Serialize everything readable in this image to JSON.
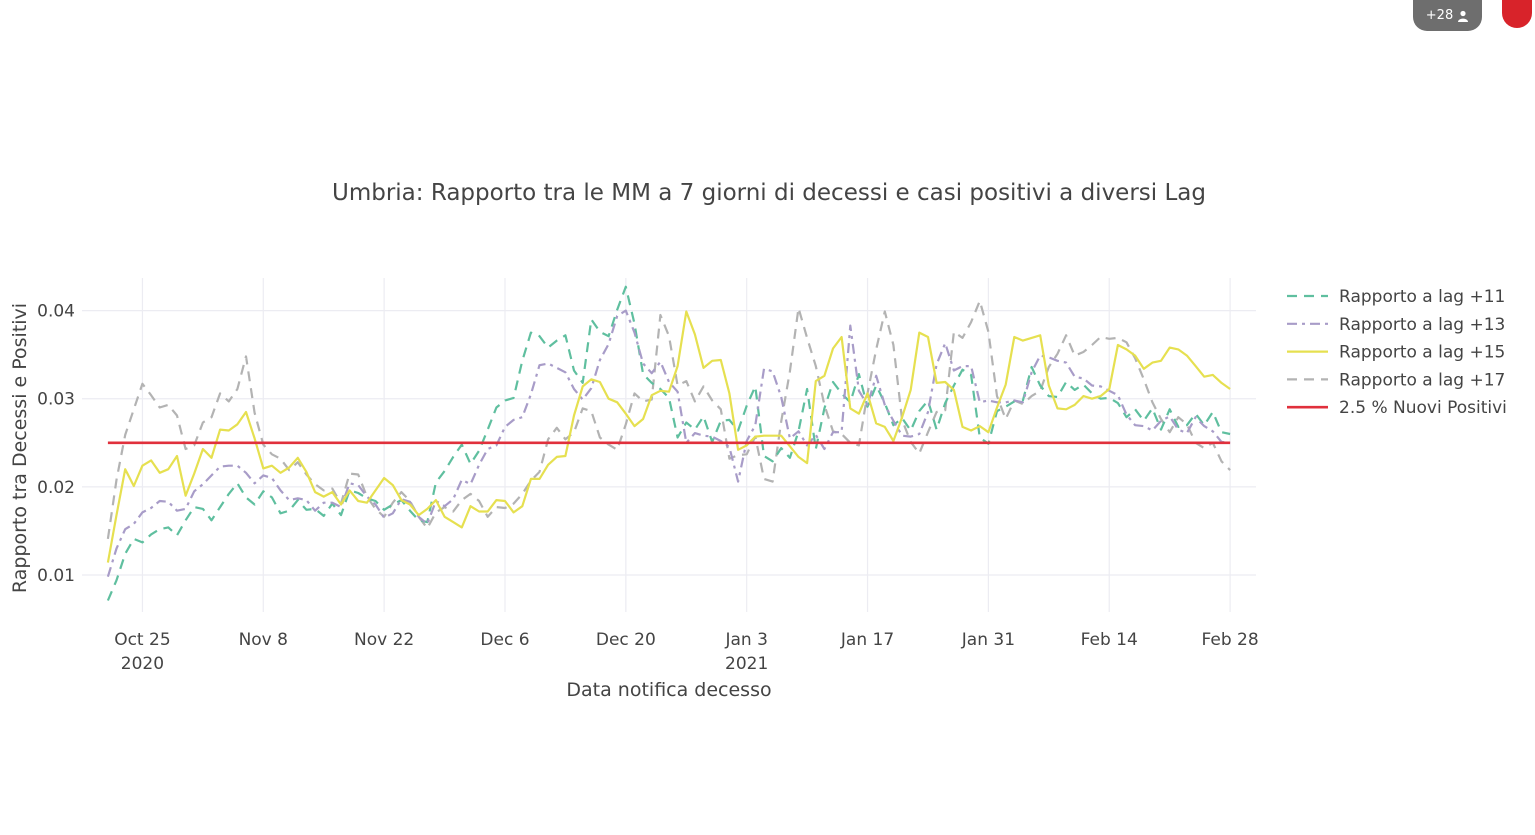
{
  "overlay": {
    "participants_label": "+28",
    "participants_icon": "person-icon",
    "record_icon": "record-dot-icon"
  },
  "chart_data": {
    "type": "line",
    "title": "Umbria: Rapporto tra le MM a 7 giorni di decessi e casi positivi a diversi Lag",
    "xlabel": "Data notifica decesso",
    "ylabel": "Rapporto tra Decessi e Positivi",
    "x_start": "2020-10-21",
    "x_end": "2021-02-28",
    "xlim": [
      "2020-10-18",
      "2021-03-03"
    ],
    "ylim": [
      0.0058,
      0.0437
    ],
    "grid": true,
    "legend_position": "right",
    "x_ticks": [
      {
        "date": "2020-10-25",
        "label": "Oct 25",
        "sublabel": "2020"
      },
      {
        "date": "2020-11-08",
        "label": "Nov 8",
        "sublabel": ""
      },
      {
        "date": "2020-11-22",
        "label": "Nov 22",
        "sublabel": ""
      },
      {
        "date": "2020-12-06",
        "label": "Dec 6",
        "sublabel": ""
      },
      {
        "date": "2020-12-20",
        "label": "Dec 20",
        "sublabel": ""
      },
      {
        "date": "2021-01-03",
        "label": "Jan 3",
        "sublabel": "2021"
      },
      {
        "date": "2021-01-17",
        "label": "Jan 17",
        "sublabel": ""
      },
      {
        "date": "2021-01-31",
        "label": "Jan 31",
        "sublabel": ""
      },
      {
        "date": "2021-02-14",
        "label": "Feb 14",
        "sublabel": ""
      },
      {
        "date": "2021-02-28",
        "label": "Feb 28",
        "sublabel": ""
      }
    ],
    "y_ticks": [
      {
        "value": 0.01,
        "label": "0.01"
      },
      {
        "value": 0.02,
        "label": "0.02"
      },
      {
        "value": 0.03,
        "label": "0.03"
      },
      {
        "value": 0.04,
        "label": "0.04"
      }
    ],
    "series": [
      {
        "name": "Rapporto a lag +11",
        "color": "#5fbf9f",
        "dash": "dash",
        "values": [
          0.0071,
          0.0094,
          0.0124,
          0.0141,
          0.0137,
          0.0146,
          0.0152,
          0.0154,
          0.0145,
          0.0162,
          0.0177,
          0.0175,
          0.0162,
          0.0177,
          0.0192,
          0.0204,
          0.0188,
          0.018,
          0.0195,
          0.0188,
          0.017,
          0.0173,
          0.0185,
          0.0174,
          0.0175,
          0.0167,
          0.0181,
          0.0168,
          0.0196,
          0.0193,
          0.0187,
          0.0184,
          0.0174,
          0.018,
          0.0185,
          0.0173,
          0.0162,
          0.016,
          0.0205,
          0.0218,
          0.0234,
          0.0248,
          0.0226,
          0.0241,
          0.0265,
          0.029,
          0.0298,
          0.0301,
          0.0343,
          0.0375,
          0.0371,
          0.0358,
          0.0366,
          0.0372,
          0.0332,
          0.0318,
          0.039,
          0.0376,
          0.0371,
          0.0401,
          0.0427,
          0.0385,
          0.0328,
          0.0318,
          0.0311,
          0.0301,
          0.0256,
          0.0273,
          0.0265,
          0.028,
          0.0251,
          0.0275,
          0.0276,
          0.0264,
          0.0292,
          0.0314,
          0.0235,
          0.0229,
          0.0244,
          0.0233,
          0.0263,
          0.0311,
          0.0243,
          0.0289,
          0.0319,
          0.0306,
          0.0296,
          0.0328,
          0.0291,
          0.0315,
          0.0295,
          0.027,
          0.0278,
          0.0264,
          0.0286,
          0.0298,
          0.0265,
          0.0295,
          0.0315,
          0.0333,
          0.0327,
          0.0256,
          0.0249,
          0.0286,
          0.0291,
          0.0297,
          0.0298,
          0.0336,
          0.0315,
          0.0303,
          0.0302,
          0.0319,
          0.031,
          0.0316,
          0.0306,
          0.03,
          0.0301,
          0.0295,
          0.0279,
          0.0288,
          0.0275,
          0.0289,
          0.0265,
          0.0288,
          0.0268,
          0.027,
          0.0283,
          0.027,
          0.0285,
          0.0262,
          0.026
        ]
      },
      {
        "name": "Rapporto a lag +13",
        "color": "#a89cc8",
        "dash": "dashdot",
        "values": [
          0.0098,
          0.013,
          0.0152,
          0.0158,
          0.0171,
          0.0176,
          0.0184,
          0.0183,
          0.0173,
          0.0175,
          0.0195,
          0.0203,
          0.0213,
          0.0223,
          0.0224,
          0.0224,
          0.0216,
          0.0204,
          0.0213,
          0.021,
          0.0196,
          0.0185,
          0.0187,
          0.0185,
          0.0173,
          0.0182,
          0.0182,
          0.0177,
          0.0204,
          0.0202,
          0.0189,
          0.018,
          0.0165,
          0.017,
          0.0186,
          0.0183,
          0.0166,
          0.0158,
          0.0184,
          0.0178,
          0.0186,
          0.0208,
          0.0203,
          0.0225,
          0.0243,
          0.0247,
          0.0268,
          0.0276,
          0.0279,
          0.0305,
          0.0338,
          0.034,
          0.0335,
          0.033,
          0.0311,
          0.0299,
          0.0312,
          0.0344,
          0.0362,
          0.0394,
          0.04,
          0.0375,
          0.034,
          0.0329,
          0.0342,
          0.0319,
          0.0308,
          0.025,
          0.0261,
          0.0258,
          0.0257,
          0.0252,
          0.0245,
          0.0206,
          0.0252,
          0.027,
          0.0334,
          0.0331,
          0.0302,
          0.0255,
          0.0263,
          0.0247,
          0.0259,
          0.0243,
          0.0262,
          0.0262,
          0.0383,
          0.0309,
          0.0293,
          0.0326,
          0.0293,
          0.0275,
          0.0258,
          0.0257,
          0.026,
          0.0285,
          0.0339,
          0.0363,
          0.0332,
          0.0337,
          0.0337,
          0.0296,
          0.0298,
          0.0296,
          0.0296,
          0.0298,
          0.0296,
          0.033,
          0.0349,
          0.0347,
          0.0343,
          0.0341,
          0.0325,
          0.0323,
          0.0315,
          0.0314,
          0.0309,
          0.0304,
          0.0282,
          0.027,
          0.0269,
          0.0264,
          0.0275,
          0.028,
          0.0265,
          0.0261,
          0.0279,
          0.0269,
          0.0263,
          0.0251,
          0.025
        ]
      },
      {
        "name": "Rapporto a lag +15",
        "color": "#e6e050",
        "dash": "solid",
        "values": [
          0.0114,
          0.0168,
          0.022,
          0.0201,
          0.0224,
          0.023,
          0.0216,
          0.022,
          0.0235,
          0.019,
          0.0215,
          0.0243,
          0.0233,
          0.0265,
          0.0264,
          0.0271,
          0.0285,
          0.0255,
          0.0221,
          0.0224,
          0.0216,
          0.0222,
          0.0233,
          0.0217,
          0.0194,
          0.0189,
          0.0194,
          0.018,
          0.0196,
          0.0184,
          0.0182,
          0.0196,
          0.021,
          0.0202,
          0.0185,
          0.018,
          0.0168,
          0.0175,
          0.0185,
          0.0166,
          0.016,
          0.0154,
          0.0178,
          0.0172,
          0.0172,
          0.0185,
          0.0184,
          0.0171,
          0.0178,
          0.0209,
          0.0209,
          0.0225,
          0.0234,
          0.0235,
          0.0281,
          0.0314,
          0.0322,
          0.0319,
          0.03,
          0.0296,
          0.0283,
          0.0269,
          0.0277,
          0.0304,
          0.0309,
          0.0308,
          0.0337,
          0.0399,
          0.0373,
          0.0335,
          0.0343,
          0.0344,
          0.0306,
          0.0242,
          0.0247,
          0.0257,
          0.0258,
          0.0258,
          0.0258,
          0.0246,
          0.0234,
          0.0227,
          0.032,
          0.0326,
          0.0357,
          0.037,
          0.0289,
          0.0283,
          0.0306,
          0.0272,
          0.0268,
          0.0252,
          0.0279,
          0.031,
          0.0375,
          0.037,
          0.0318,
          0.0319,
          0.031,
          0.0268,
          0.0264,
          0.0269,
          0.0262,
          0.029,
          0.0316,
          0.037,
          0.0366,
          0.0369,
          0.0372,
          0.0315,
          0.0289,
          0.0288,
          0.0293,
          0.0303,
          0.03,
          0.0303,
          0.0311,
          0.0361,
          0.0356,
          0.0349,
          0.0334,
          0.0341,
          0.0343,
          0.0358,
          0.0356,
          0.0349,
          0.0337,
          0.0325,
          0.0327,
          0.0318,
          0.0311
        ]
      },
      {
        "name": "Rapporto a lag +17",
        "color": "#b3b3b3",
        "dash": "dash",
        "values": [
          0.0141,
          0.0208,
          0.0259,
          0.0288,
          0.0317,
          0.0304,
          0.029,
          0.0293,
          0.0281,
          0.0243,
          0.0247,
          0.0273,
          0.0279,
          0.0306,
          0.0297,
          0.0311,
          0.0348,
          0.0284,
          0.0248,
          0.0237,
          0.0232,
          0.0219,
          0.0228,
          0.0214,
          0.0203,
          0.0196,
          0.0198,
          0.0181,
          0.0215,
          0.0214,
          0.0189,
          0.0175,
          0.0166,
          0.0182,
          0.0194,
          0.0184,
          0.0166,
          0.0153,
          0.0171,
          0.0177,
          0.0172,
          0.0185,
          0.0192,
          0.0184,
          0.0166,
          0.0177,
          0.0176,
          0.0181,
          0.0192,
          0.0207,
          0.0217,
          0.0254,
          0.0267,
          0.0254,
          0.0262,
          0.0289,
          0.0286,
          0.0256,
          0.0248,
          0.0242,
          0.0271,
          0.0306,
          0.0297,
          0.0299,
          0.0395,
          0.0371,
          0.0315,
          0.032,
          0.0297,
          0.0314,
          0.0298,
          0.0288,
          0.0232,
          0.0236,
          0.0237,
          0.0257,
          0.0209,
          0.0206,
          0.0274,
          0.0331,
          0.0403,
          0.0369,
          0.0337,
          0.0293,
          0.0263,
          0.026,
          0.025,
          0.0247,
          0.0306,
          0.0356,
          0.0399,
          0.0361,
          0.0276,
          0.0251,
          0.0238,
          0.0262,
          0.0285,
          0.0287,
          0.0376,
          0.0369,
          0.0387,
          0.0411,
          0.0376,
          0.0303,
          0.0277,
          0.0298,
          0.0294,
          0.0303,
          0.0309,
          0.0336,
          0.0351,
          0.0372,
          0.0349,
          0.0353,
          0.0361,
          0.037,
          0.0368,
          0.0369,
          0.0364,
          0.0346,
          0.0322,
          0.0296,
          0.0277,
          0.0262,
          0.0279,
          0.0271,
          0.025,
          0.0244,
          0.025,
          0.0229,
          0.0219
        ]
      },
      {
        "name": "2.5 % Nuovi Positivi",
        "color": "#e0303c",
        "dash": "solid",
        "constant": 0.025
      }
    ]
  }
}
